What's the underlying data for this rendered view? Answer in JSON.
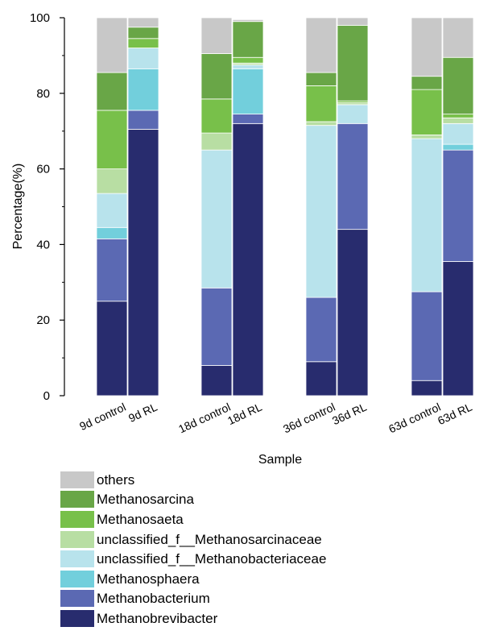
{
  "chart_data": {
    "type": "bar",
    "stacked": true,
    "xlabel": "Sample",
    "ylabel": "Percentage(%)",
    "ylim": [
      0,
      100
    ],
    "yticks": [
      0,
      20,
      40,
      60,
      80,
      100
    ],
    "grid": false,
    "legend_position": "bottom",
    "categories": [
      "9d control",
      "9d RL",
      "18d control",
      "18d RL",
      "36d control",
      "36d RL",
      "63d control",
      "63d RL"
    ],
    "series": [
      {
        "name": "Methanobrevibacter",
        "color": "#282c6e",
        "values": [
          25.0,
          70.5,
          8.0,
          72.0,
          9.0,
          44.0,
          4.0,
          35.5
        ]
      },
      {
        "name": "Methanobacterium",
        "color": "#5b69b3",
        "values": [
          16.5,
          5.0,
          20.5,
          2.5,
          17.0,
          28.0,
          23.5,
          29.5
        ]
      },
      {
        "name": "Methanosphaera",
        "color": "#72cfdc",
        "values": [
          3.0,
          11.0,
          0.0,
          12.0,
          0.0,
          0.0,
          0.0,
          1.5
        ]
      },
      {
        "name": "unclassified_f__Methanobacteriaceae",
        "color": "#b8e3ec",
        "values": [
          9.0,
          5.5,
          36.5,
          1.0,
          45.5,
          5.0,
          40.5,
          5.5
        ]
      },
      {
        "name": "unclassified_f__Methanosarcinaceae",
        "color": "#b8dea3",
        "values": [
          6.5,
          0.0,
          4.5,
          0.5,
          1.0,
          0.5,
          1.0,
          1.5
        ]
      },
      {
        "name": "Methanosaeta",
        "color": "#78c04a",
        "values": [
          15.5,
          2.5,
          9.0,
          1.5,
          9.5,
          0.5,
          12.0,
          1.0
        ]
      },
      {
        "name": "Methanosarcina",
        "color": "#69a647",
        "values": [
          10.0,
          3.0,
          12.0,
          9.5,
          3.5,
          20.0,
          3.5,
          15.0
        ]
      },
      {
        "name": "others",
        "color": "#c8c8c8",
        "values": [
          14.5,
          2.5,
          9.5,
          0.5,
          14.5,
          2.0,
          15.5,
          10.5
        ]
      }
    ]
  }
}
